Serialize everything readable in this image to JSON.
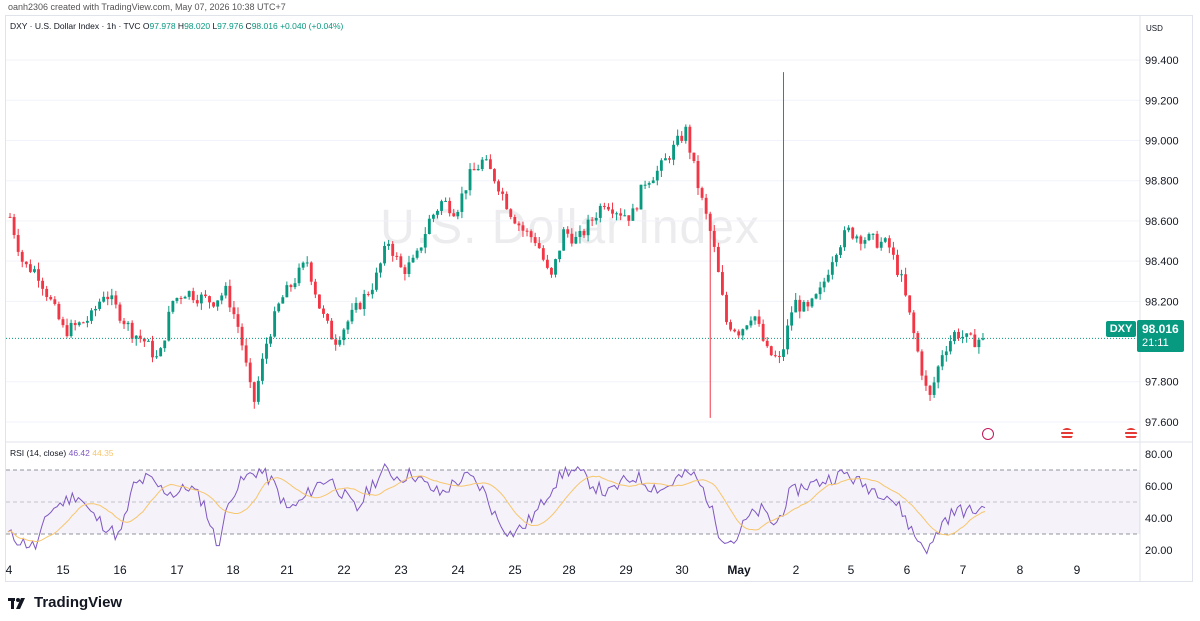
{
  "header": {
    "credit": "oanh2306 created with TradingView.com, May 07, 2026 10:38 UTC+7",
    "symbol": "DXY · U.S. Dollar Index · 1h · TVC",
    "o_label": "O",
    "o_value": "97.978",
    "h_label": "H",
    "h_value": "98.020",
    "l_label": "L",
    "l_value": "97.976",
    "c_label": "C",
    "c_value": "98.016",
    "change": "+0.040 (+0.04%)"
  },
  "watermark": "U.S. Dollar Index",
  "price_axis": {
    "currency": "USD",
    "ticks": [
      "99.400",
      "99.200",
      "99.000",
      "98.800",
      "98.600",
      "98.400",
      "98.200",
      "97.800",
      "97.600"
    ]
  },
  "last_price": {
    "symbol": "DXY",
    "price": "98.016",
    "countdown": "21:11"
  },
  "rsi": {
    "label": "RSI (14, close)",
    "value1": "46.42",
    "value2": "44.35",
    "ticks": [
      "80.00",
      "60.00",
      "40.00",
      "20.00"
    ]
  },
  "time_axis": [
    "4",
    "15",
    "16",
    "17",
    "18",
    "21",
    "22",
    "23",
    "24",
    "25",
    "28",
    "29",
    "30",
    "May",
    "2",
    "5",
    "6",
    "7",
    "8",
    "9"
  ],
  "branding": {
    "logo_text": "TradingView"
  },
  "colors": {
    "up": "#089981",
    "down": "#f23645",
    "rsi": "#7e57c2",
    "rsi_ma": "#f7c66b"
  },
  "chart_data": {
    "type": "candlestick",
    "ylim": [
      97.55,
      99.5
    ],
    "close_path": [
      98.62,
      98.38,
      98.35,
      98.2,
      98.05,
      98.08,
      98.12,
      98.25,
      98.15,
      98.05,
      98.0,
      97.9,
      98.2,
      98.25,
      98.22,
      98.2,
      98.25,
      98.05,
      97.68,
      98.0,
      98.2,
      98.3,
      98.4,
      98.15,
      98.0,
      98.1,
      98.2,
      98.3,
      98.5,
      98.35,
      98.4,
      98.6,
      98.7,
      98.65,
      98.82,
      98.9,
      98.8,
      98.65,
      98.55,
      98.5,
      98.3,
      98.55,
      98.5,
      98.6,
      98.7,
      98.65,
      98.62,
      98.8,
      98.85,
      98.95,
      99.05,
      98.75,
      98.5,
      98.1,
      98.05,
      98.15,
      97.95,
      97.9,
      98.2,
      98.15,
      98.25,
      98.45,
      98.55,
      98.52,
      98.5,
      98.48,
      98.3,
      98.0,
      97.7,
      97.95,
      98.05,
      98.0,
      98.016
    ],
    "last_close": 98.016,
    "rsi_ylim": [
      15,
      85
    ],
    "rsi_path": [
      30,
      25,
      22,
      45,
      50,
      55,
      42,
      35,
      28,
      60,
      65,
      58,
      55,
      60,
      50,
      22,
      55,
      65,
      70,
      62,
      45,
      50,
      60,
      65,
      55,
      45,
      60,
      70,
      65,
      68,
      60,
      55,
      62,
      66,
      58,
      40,
      30,
      35,
      45,
      60,
      70,
      68,
      60,
      55,
      62,
      66,
      60,
      58,
      65,
      68,
      55,
      30,
      25,
      40,
      45,
      35,
      55,
      60,
      62,
      65,
      68,
      62,
      58,
      55,
      45,
      28,
      20,
      38,
      45,
      44,
      46.42
    ]
  }
}
